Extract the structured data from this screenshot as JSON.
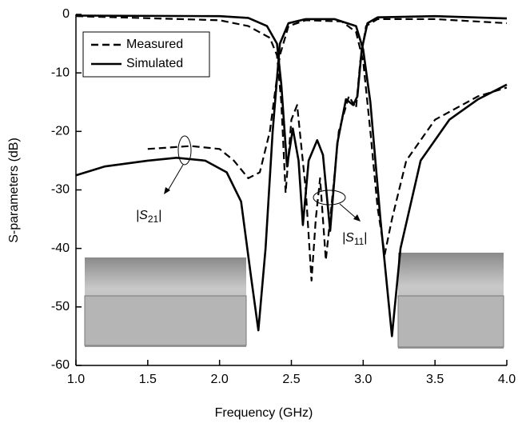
{
  "chart_data": {
    "type": "line",
    "xlabel": "Frequency (GHz)",
    "ylabel": "S-parameters (dB)",
    "xlim": [
      1.0,
      4.0
    ],
    "ylim": [
      -60,
      0
    ],
    "xticks": [
      {
        "value": 1.0,
        "label": "1.0"
      },
      {
        "value": 1.5,
        "label": "1.5"
      },
      {
        "value": 2.0,
        "label": "2.0"
      },
      {
        "value": 2.5,
        "label": "2.5"
      },
      {
        "value": 3.0,
        "label": "3.0"
      },
      {
        "value": 3.5,
        "label": "3.5"
      },
      {
        "value": 4.0,
        "label": "4.0"
      }
    ],
    "yticks": [
      0,
      -10,
      -20,
      -30,
      -40,
      -50,
      -60
    ],
    "legend_position": "upper left",
    "legend": [
      {
        "name": "Measured",
        "dash": true
      },
      {
        "name": "Simulated",
        "dash": false
      }
    ],
    "annotations": [
      {
        "pre": "|S",
        "sub": "21",
        "post": "|"
      },
      {
        "pre": "|S",
        "sub": "11",
        "post": "|"
      }
    ],
    "series": [
      {
        "dash": false,
        "color": "#000000",
        "x": [
          1.0,
          1.2,
          1.5,
          1.7,
          1.9,
          2.05,
          2.15,
          2.22,
          2.27,
          2.32,
          2.37,
          2.42,
          2.48,
          2.6,
          2.8,
          2.95,
          3.0,
          3.05,
          3.12,
          3.2,
          3.26,
          3.4,
          3.6,
          3.8,
          4.0
        ],
        "values": [
          -27.5,
          -26,
          -25,
          -24.5,
          -25,
          -27,
          -32,
          -45,
          -54,
          -40,
          -20,
          -5,
          -1.5,
          -0.8,
          -0.8,
          -2,
          -6,
          -15,
          -35,
          -55,
          -40,
          -25,
          -18,
          -14.5,
          -12
        ]
      },
      {
        "dash": false,
        "color": "#000000",
        "x": [
          1.0,
          2.0,
          2.2,
          2.33,
          2.4,
          2.43,
          2.47,
          2.51,
          2.55,
          2.58,
          2.62,
          2.68,
          2.72,
          2.77,
          2.82,
          2.88,
          2.93,
          2.96,
          2.99,
          3.03,
          3.1,
          3.5,
          4.0
        ],
        "values": [
          -0.2,
          -0.3,
          -0.6,
          -2,
          -5,
          -12,
          -26,
          -19.5,
          -25,
          -36,
          -25,
          -21.5,
          -24,
          -37,
          -22,
          -14.5,
          -15.5,
          -14,
          -6,
          -1.5,
          -0.5,
          -0.3,
          -0.7
        ]
      },
      {
        "dash": true,
        "color": "#000000",
        "x": [
          1.5,
          1.8,
          2.0,
          2.1,
          2.2,
          2.28,
          2.35,
          2.42,
          2.48,
          2.6,
          2.85,
          2.95,
          3.0,
          3.05,
          3.1,
          3.15,
          3.2,
          3.3,
          3.5,
          3.8,
          4.0
        ],
        "values": [
          -23,
          -22.5,
          -23,
          -25,
          -28,
          -27,
          -20,
          -7,
          -2,
          -1,
          -1.2,
          -3,
          -8,
          -20,
          -33,
          -41,
          -35,
          -25,
          -18,
          -14,
          -12.5
        ]
      },
      {
        "dash": true,
        "color": "#000000",
        "x": [
          1.0,
          2.0,
          2.2,
          2.35,
          2.4,
          2.43,
          2.46,
          2.5,
          2.54,
          2.6,
          2.64,
          2.67,
          2.7,
          2.74,
          2.77,
          2.83,
          2.9,
          2.95,
          2.98,
          3.02,
          3.1,
          3.5,
          4.0
        ],
        "values": [
          -0.3,
          -1,
          -2,
          -4,
          -7,
          -15,
          -30.5,
          -18,
          -15.5,
          -30,
          -45.5,
          -35,
          -28,
          -42,
          -35,
          -20,
          -14,
          -16,
          -8,
          -2,
          -0.8,
          -0.8,
          -1.5
        ]
      }
    ]
  }
}
